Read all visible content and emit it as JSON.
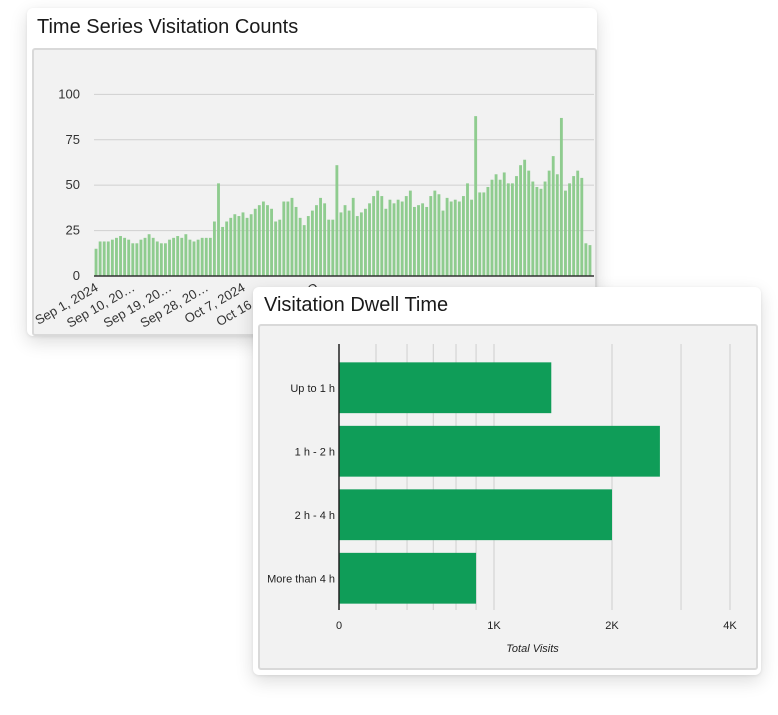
{
  "chart_data": [
    {
      "type": "bar",
      "title": "Time Series Visitation Counts",
      "xlabel": "",
      "ylabel": "",
      "ylim": [
        0,
        120
      ],
      "yticks": [
        0,
        25,
        50,
        75,
        100
      ],
      "grid": true,
      "bar_color": "#8fcc8f",
      "axis_color": "#333333",
      "grid_color": "#d0d0d0",
      "x_tick_labels": [
        "Sep 1, 2024",
        "Sep 10, 20…",
        "Sep 19, 20…",
        "Sep 28, 20…",
        "Oct 7, 2024",
        "Oct 16, 20…",
        "O"
      ],
      "values": [
        15,
        19,
        19,
        19,
        20,
        21,
        22,
        21,
        20,
        18,
        18,
        20,
        21,
        23,
        21,
        19,
        18,
        18,
        20,
        21,
        22,
        21,
        23,
        20,
        19,
        20,
        21,
        21,
        21,
        30,
        51,
        27,
        30,
        32,
        34,
        33,
        35,
        32,
        34,
        37,
        39,
        41,
        39,
        37,
        30,
        31,
        41,
        41,
        43,
        38,
        32,
        28,
        33,
        36,
        39,
        43,
        40,
        31,
        31,
        61,
        35,
        39,
        36,
        43,
        33,
        35,
        37,
        40,
        44,
        47,
        44,
        37,
        42,
        40,
        42,
        41,
        44,
        47,
        38,
        39,
        40,
        38,
        44,
        47,
        45,
        36,
        43,
        41,
        42,
        41,
        44,
        51,
        42,
        88,
        46,
        46,
        49,
        53,
        56,
        53,
        57,
        51,
        51,
        55,
        61,
        64,
        58,
        52,
        49,
        48,
        52,
        58,
        66,
        56,
        87,
        47,
        51,
        55,
        58,
        54,
        18,
        17
      ]
    },
    {
      "type": "bar",
      "orientation": "horizontal",
      "title": "Visitation Dwell Time",
      "xlabel": "Total Visits",
      "ylabel": "",
      "x_scale": "log",
      "xlim": [
        1,
        4000
      ],
      "x_tick_labels": [
        "0",
        "1K",
        "2K",
        "4K"
      ],
      "bar_color": "#0f9d58",
      "categories": [
        "Up to 1 h",
        "1 h - 2 h",
        "2 h - 4 h",
        "More than 4 h"
      ],
      "values": [
        1400,
        2650,
        2000,
        900
      ]
    }
  ]
}
